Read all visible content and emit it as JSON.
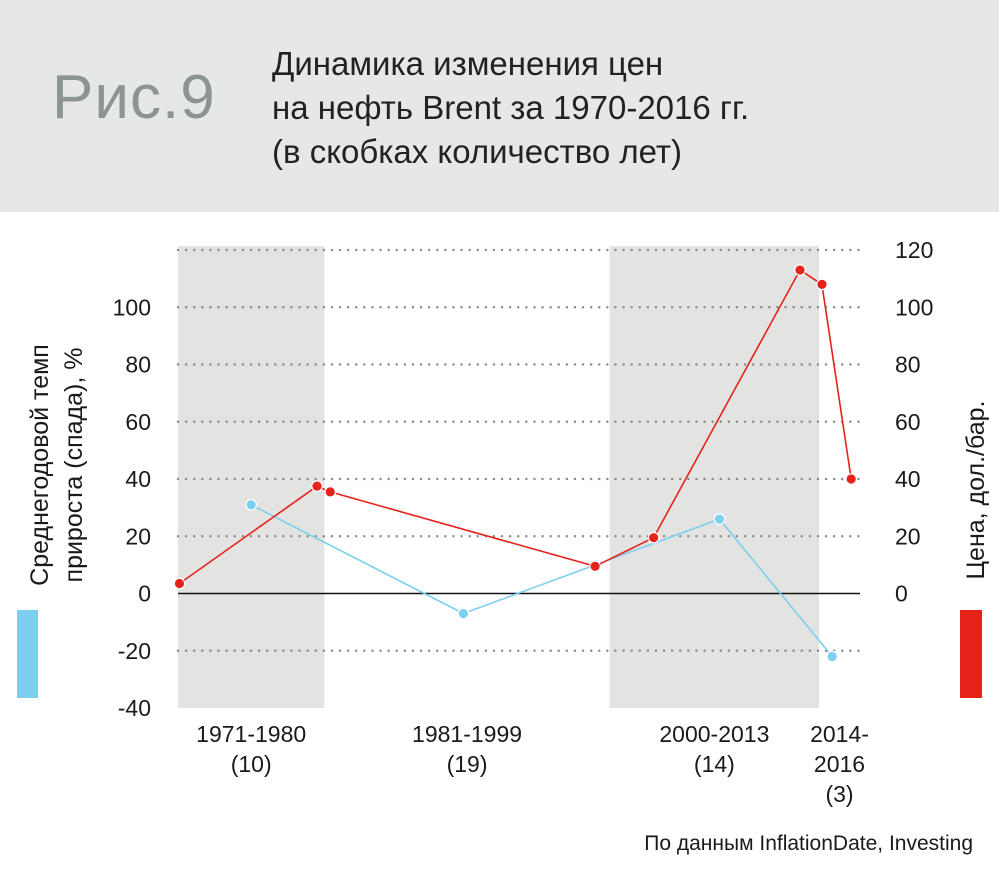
{
  "header": {
    "fig_label": "Рис.9",
    "title_lines": [
      "Динамика изменения цен",
      "на нефть Brent за 1970-2016 гг.",
      "(в скобках количество лет)"
    ]
  },
  "source": "По данным InflationDate, Investing",
  "colors": {
    "growth": "#7dcff0",
    "price": "#e5231b",
    "shade": "#e3e4e2",
    "grid": "#8a8a8a",
    "header_bg": "#e6e8e6"
  },
  "chart_data": {
    "type": "line",
    "left_axis": {
      "label": "Среднегодовой темп прироста (спада), %",
      "label_lines": [
        "Среднегодовой темп",
        "прироста (спада), %"
      ],
      "range": [
        -40,
        120
      ],
      "ticks": [
        -40,
        -20,
        0,
        20,
        40,
        60,
        80,
        100
      ],
      "tick_labels": [
        "-40",
        "-20",
        "0",
        "20",
        "40",
        "60",
        "80",
        "100"
      ]
    },
    "right_axis": {
      "label": "Цена, дол./бар.",
      "range": [
        -40,
        120
      ],
      "ticks": [
        0,
        20,
        40,
        60,
        80,
        100,
        120
      ],
      "tick_labels": [
        "0",
        "20",
        "40",
        "60",
        "80",
        "100",
        "120"
      ]
    },
    "x_range": [
      1970,
      2016.6
    ],
    "gridlines": [
      -20,
      20,
      40,
      60,
      80,
      100,
      120
    ],
    "periods": [
      {
        "label_lines": [
          "1971-1980",
          "(10)"
        ],
        "start": 1970,
        "end": 1980,
        "shaded": true
      },
      {
        "label_lines": [
          "1981-1999",
          "(19)"
        ],
        "start": 1980,
        "end": 1999.5,
        "shaded": false
      },
      {
        "label_lines": [
          "2000-2013",
          "(14)"
        ],
        "start": 1999.5,
        "end": 2013.8,
        "shaded": true
      },
      {
        "label_lines": [
          "2014-",
          "2016",
          "(3)"
        ],
        "start": 2013.8,
        "end": 2016.6,
        "shaded": false
      }
    ],
    "series": [
      {
        "key": "growth",
        "axis": "left",
        "x": [
          1975,
          1989.5,
          2007,
          2014.7
        ],
        "values": [
          31,
          -7,
          26,
          -22
        ]
      },
      {
        "key": "price",
        "axis": "right",
        "x": [
          1970.1,
          1979.5,
          1980.4,
          1998.5,
          2002.5,
          2012.5,
          2014.0,
          2016.0
        ],
        "values": [
          3.5,
          37.5,
          35.5,
          9.5,
          19.5,
          113,
          108,
          40
        ]
      }
    ]
  }
}
